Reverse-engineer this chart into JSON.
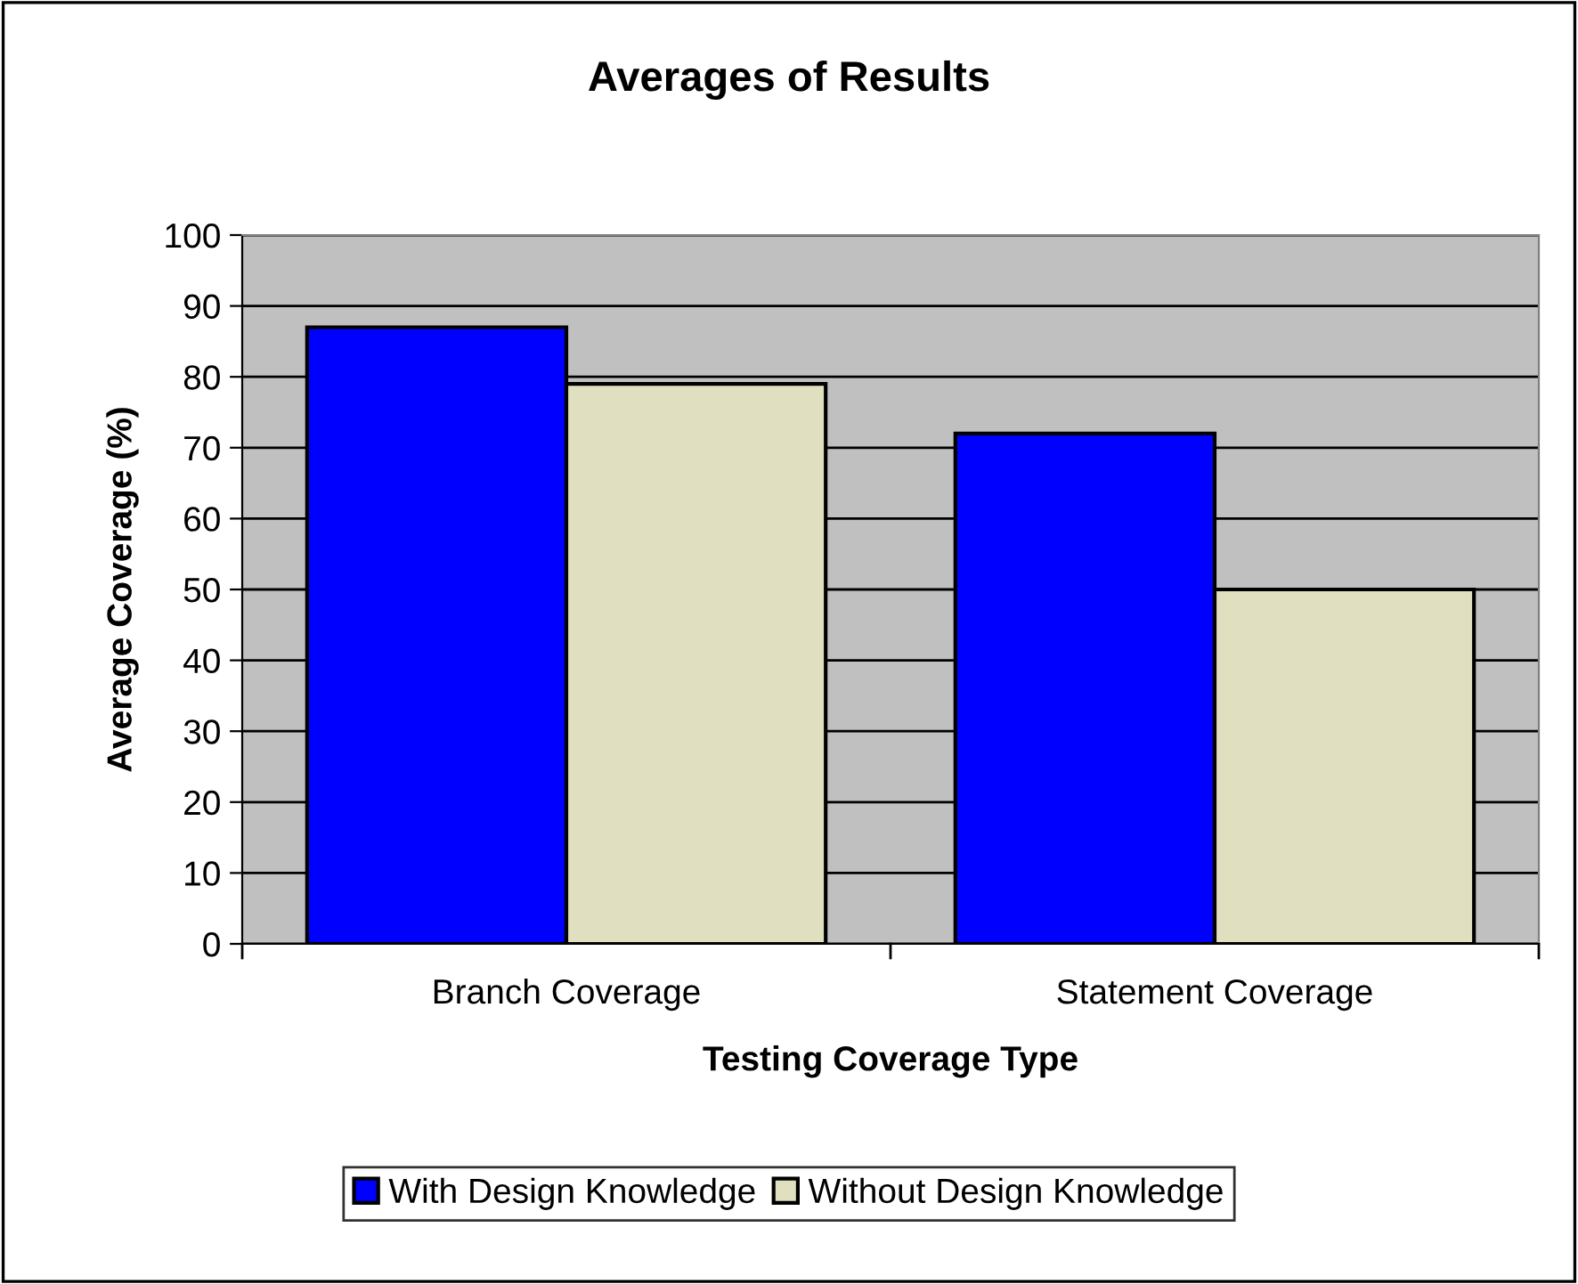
{
  "chart_data": {
    "type": "bar",
    "title": "Averages of Results",
    "xlabel": "Testing Coverage Type",
    "ylabel": "Average Coverage (%)",
    "categories": [
      "Branch Coverage",
      "Statement Coverage"
    ],
    "series": [
      {
        "name": "With Design Knowledge",
        "color": "#0000ff",
        "values": [
          87,
          72
        ]
      },
      {
        "name": "Without Design Knowledge",
        "color": "#e0e0c0",
        "values": [
          79,
          50
        ]
      }
    ],
    "ylim": [
      0,
      100
    ],
    "yticks": [
      0,
      10,
      20,
      30,
      40,
      50,
      60,
      70,
      80,
      90,
      100
    ],
    "grid": "y",
    "legend": "bottom"
  }
}
